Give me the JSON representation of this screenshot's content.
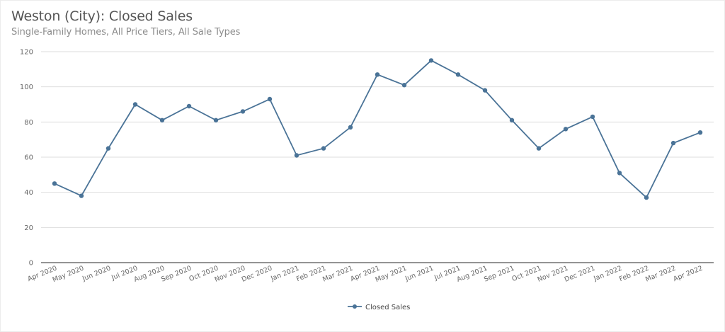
{
  "header": {
    "title": "Weston (City): Closed Sales",
    "subtitle": "Single-Family Homes, All Price Tiers, All Sale Types"
  },
  "colors": {
    "series": "#4a7397",
    "grid": "#dddddd",
    "axis": "#555555"
  },
  "legend": {
    "label": "Closed Sales"
  },
  "chart_data": {
    "type": "line",
    "title": "Weston (City): Closed Sales",
    "subtitle": "Single-Family Homes, All Price Tiers, All Sale Types",
    "xlabel": "",
    "ylabel": "",
    "ylim": [
      0,
      120
    ],
    "yticks": [
      0,
      20,
      40,
      60,
      80,
      100,
      120
    ],
    "grid": true,
    "legend_position": "bottom",
    "categories": [
      "Apr 2020",
      "May 2020",
      "Jun 2020",
      "Jul 2020",
      "Aug 2020",
      "Sep 2020",
      "Oct 2020",
      "Nov 2020",
      "Dec 2020",
      "Jan 2021",
      "Feb 2021",
      "Mar 2021",
      "Apr 2021",
      "May 2021",
      "Jun 2021",
      "Jul 2021",
      "Aug 2021",
      "Sep 2021",
      "Oct 2021",
      "Nov 2021",
      "Dec 2021",
      "Jan 2022",
      "Feb 2022",
      "Mar 2022",
      "Apr 2022"
    ],
    "series": [
      {
        "name": "Closed Sales",
        "values": [
          45,
          38,
          65,
          90,
          81,
          89,
          81,
          86,
          93,
          61,
          65,
          77,
          107,
          101,
          115,
          107,
          98,
          81,
          65,
          76,
          83,
          51,
          37,
          68,
          74
        ]
      }
    ]
  }
}
